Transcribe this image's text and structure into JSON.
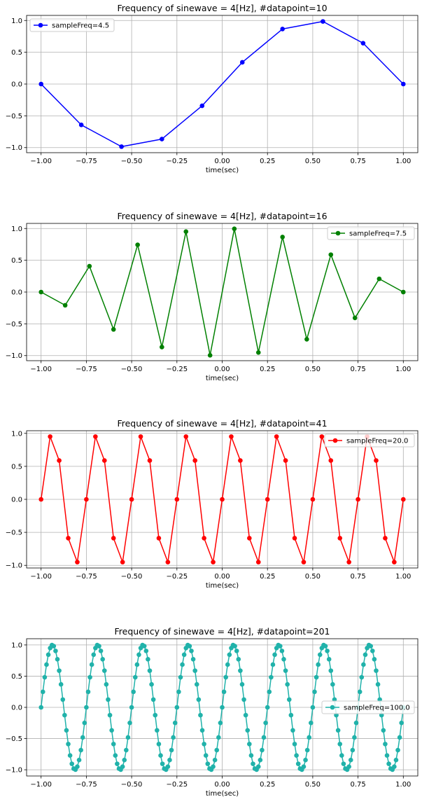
{
  "figure": {
    "background": "#ffffff"
  },
  "chart_data": [
    {
      "type": "line",
      "title": "Frequency of sinewave = 4[Hz], #datapoint=10",
      "xlabel": "time(sec)",
      "ylabel": "",
      "xlim": [
        -1.08,
        1.08
      ],
      "ylim": [
        -1.08,
        1.08
      ],
      "xticks": [
        -1.0,
        -0.75,
        -0.5,
        -0.25,
        0.0,
        0.25,
        0.5,
        0.75,
        1.0
      ],
      "xticklabels": [
        "−1.00",
        "−0.75",
        "−0.50",
        "−0.25",
        "0.00",
        "0.25",
        "0.50",
        "0.75",
        "1.00"
      ],
      "yticks": [
        -1.0,
        -0.5,
        0.0,
        0.5,
        1.0
      ],
      "yticklabels": [
        "−1.0",
        "−0.5",
        "0.0",
        "0.5",
        "1.0"
      ],
      "grid": true,
      "legend": "top-left",
      "series": [
        {
          "name": "sampleFreq=4.5",
          "color": "#0000ff",
          "marker": "circle",
          "x": [
            -1.0,
            -0.778,
            -0.556,
            -0.333,
            -0.111,
            0.111,
            0.333,
            0.556,
            0.778,
            1.0
          ],
          "y": [
            0.0,
            -0.643,
            -0.985,
            -0.866,
            -0.342,
            0.342,
            0.866,
            0.985,
            0.643,
            0.0
          ]
        }
      ]
    },
    {
      "type": "line",
      "title": "Frequency of sinewave = 4[Hz], #datapoint=16",
      "xlabel": "time(sec)",
      "ylabel": "",
      "xlim": [
        -1.08,
        1.08
      ],
      "ylim": [
        -1.08,
        1.08
      ],
      "xticks": [
        -1.0,
        -0.75,
        -0.5,
        -0.25,
        0.0,
        0.25,
        0.5,
        0.75,
        1.0
      ],
      "xticklabels": [
        "−1.00",
        "−0.75",
        "−0.50",
        "−0.25",
        "0.00",
        "0.25",
        "0.50",
        "0.75",
        "1.00"
      ],
      "yticks": [
        -1.0,
        -0.5,
        0.0,
        0.5,
        1.0
      ],
      "yticklabels": [
        "−1.0",
        "−0.5",
        "0.0",
        "0.5",
        "1.0"
      ],
      "grid": true,
      "legend": "top-right",
      "series": [
        {
          "name": "sampleFreq=7.5",
          "color": "#008000",
          "marker": "circle",
          "x": [
            -1.0,
            -0.867,
            -0.733,
            -0.6,
            -0.467,
            -0.333,
            -0.2,
            -0.067,
            0.067,
            0.2,
            0.333,
            0.467,
            0.6,
            0.733,
            0.867,
            1.0
          ],
          "y": [
            0.0,
            -0.208,
            0.407,
            -0.588,
            0.743,
            -0.866,
            0.951,
            -0.995,
            0.995,
            -0.951,
            0.866,
            -0.743,
            0.588,
            -0.407,
            0.208,
            0.0
          ]
        }
      ]
    },
    {
      "type": "line",
      "title": "Frequency of sinewave = 4[Hz], #datapoint=41",
      "xlabel": "time(sec)",
      "ylabel": "",
      "xlim": [
        -1.08,
        1.08
      ],
      "ylim": [
        -1.04,
        1.04
      ],
      "xticks": [
        -1.0,
        -0.75,
        -0.5,
        -0.25,
        0.0,
        0.25,
        0.5,
        0.75,
        1.0
      ],
      "xticklabels": [
        "−1.00",
        "−0.75",
        "−0.50",
        "−0.25",
        "0.00",
        "0.25",
        "0.50",
        "0.75",
        "1.00"
      ],
      "yticks": [
        -1.0,
        -0.5,
        0.0,
        0.5,
        1.0
      ],
      "yticklabels": [
        "−1.0",
        "−0.5",
        "0.0",
        "0.5",
        "1.0"
      ],
      "grid": true,
      "legend": "top-right",
      "series": [
        {
          "name": "sampleFreq=20.0",
          "color": "#ff0000",
          "marker": "circle",
          "x": [
            -1.0,
            -0.95,
            -0.9,
            -0.85,
            -0.8,
            -0.75,
            -0.7,
            -0.65,
            -0.6,
            -0.55,
            -0.5,
            -0.45,
            -0.4,
            -0.35,
            -0.3,
            -0.25,
            -0.2,
            -0.15,
            -0.1,
            -0.05,
            0.0,
            0.05,
            0.1,
            0.15,
            0.2,
            0.25,
            0.3,
            0.35,
            0.4,
            0.45,
            0.5,
            0.55,
            0.6,
            0.65,
            0.7,
            0.75,
            0.8,
            0.85,
            0.9,
            0.95,
            1.0
          ],
          "y": [
            0.0,
            0.951,
            0.588,
            -0.588,
            -0.951,
            0.0,
            0.951,
            0.588,
            -0.588,
            -0.951,
            0.0,
            0.951,
            0.588,
            -0.588,
            -0.951,
            0.0,
            0.951,
            0.588,
            -0.588,
            -0.951,
            0.0,
            0.951,
            0.588,
            -0.588,
            -0.951,
            0.0,
            0.951,
            0.588,
            -0.588,
            -0.951,
            0.0,
            0.951,
            0.588,
            -0.588,
            -0.951,
            0.0,
            0.951,
            0.588,
            -0.588,
            -0.951,
            0.0
          ]
        }
      ]
    },
    {
      "type": "line",
      "title": "Frequency of sinewave = 4[Hz], #datapoint=201",
      "xlabel": "time(sec)",
      "ylabel": "",
      "xlim": [
        -1.08,
        1.08
      ],
      "ylim": [
        -1.1,
        1.1
      ],
      "xticks": [
        -1.0,
        -0.75,
        -0.5,
        -0.25,
        0.0,
        0.25,
        0.5,
        0.75,
        1.0
      ],
      "xticklabels": [
        "−1.00",
        "−0.75",
        "−0.50",
        "−0.25",
        "0.00",
        "0.25",
        "0.50",
        "0.75",
        "1.00"
      ],
      "yticks": [
        -1.0,
        -0.5,
        0.0,
        0.5,
        1.0
      ],
      "yticklabels": [
        "−1.0",
        "−0.5",
        "0.0",
        "0.5",
        "1.0"
      ],
      "grid": true,
      "legend": "center-right",
      "series": [
        {
          "name": "sampleFreq=100.0",
          "color": "#20b2aa",
          "marker": "circle",
          "x": [
            -1.0,
            -0.99,
            -0.98,
            -0.97,
            -0.96,
            -0.95,
            -0.94,
            -0.93,
            -0.92,
            -0.91,
            -0.9,
            -0.89,
            -0.88,
            -0.87,
            -0.86,
            -0.85,
            -0.84,
            -0.83,
            -0.82,
            -0.81,
            -0.8,
            -0.79,
            -0.78,
            -0.77,
            -0.76,
            -0.75,
            -0.74,
            -0.73,
            -0.72,
            -0.71,
            -0.7,
            -0.69,
            -0.68,
            -0.67,
            -0.66,
            -0.65,
            -0.64,
            -0.63,
            -0.62,
            -0.61,
            -0.6,
            -0.59,
            -0.58,
            -0.57,
            -0.56,
            -0.55,
            -0.54,
            -0.53,
            -0.52,
            -0.51,
            -0.5,
            -0.49,
            -0.48,
            -0.47,
            -0.46,
            -0.45,
            -0.44,
            -0.43,
            -0.42,
            -0.41,
            -0.4,
            -0.39,
            -0.38,
            -0.37,
            -0.36,
            -0.35,
            -0.34,
            -0.33,
            -0.32,
            -0.31,
            -0.3,
            -0.29,
            -0.28,
            -0.27,
            -0.26,
            -0.25,
            -0.24,
            -0.23,
            -0.22,
            -0.21,
            -0.2,
            -0.19,
            -0.18,
            -0.17,
            -0.16,
            -0.15,
            -0.14,
            -0.13,
            -0.12,
            -0.11,
            -0.1,
            -0.09,
            -0.08,
            -0.07,
            -0.06,
            -0.05,
            -0.04,
            -0.03,
            -0.02,
            -0.01,
            0.0,
            0.01,
            0.02,
            0.03,
            0.04,
            0.05,
            0.06,
            0.07,
            0.08,
            0.09,
            0.1,
            0.11,
            0.12,
            0.13,
            0.14,
            0.15,
            0.16,
            0.17,
            0.18,
            0.19,
            0.2,
            0.21,
            0.22,
            0.23,
            0.24,
            0.25,
            0.26,
            0.27,
            0.28,
            0.29,
            0.3,
            0.31,
            0.32,
            0.33,
            0.34,
            0.35,
            0.36,
            0.37,
            0.38,
            0.39,
            0.4,
            0.41,
            0.42,
            0.43,
            0.44,
            0.45,
            0.46,
            0.47,
            0.48,
            0.49,
            0.5,
            0.51,
            0.52,
            0.53,
            0.54,
            0.55,
            0.56,
            0.57,
            0.58,
            0.59,
            0.6,
            0.61,
            0.62,
            0.63,
            0.64,
            0.65,
            0.66,
            0.67,
            0.68,
            0.69,
            0.7,
            0.71,
            0.72,
            0.73,
            0.74,
            0.75,
            0.76,
            0.77,
            0.78,
            0.79,
            0.8,
            0.81,
            0.82,
            0.83,
            0.84,
            0.85,
            0.86,
            0.87,
            0.88,
            0.89,
            0.9,
            0.91,
            0.92,
            0.93,
            0.94,
            0.95,
            0.96,
            0.97,
            0.98,
            0.99,
            1.0
          ],
          "y": [
            0.0,
            0.249,
            0.482,
            0.685,
            0.844,
            0.951,
            0.998,
            0.982,
            0.905,
            0.771,
            0.588,
            0.368,
            0.125,
            -0.125,
            -0.368,
            -0.588,
            -0.771,
            -0.905,
            -0.982,
            -0.998,
            -0.951,
            -0.844,
            -0.685,
            -0.482,
            -0.249,
            0.0,
            0.249,
            0.482,
            0.685,
            0.844,
            0.951,
            0.998,
            0.982,
            0.905,
            0.771,
            0.588,
            0.368,
            0.125,
            -0.125,
            -0.368,
            -0.588,
            -0.771,
            -0.905,
            -0.982,
            -0.998,
            -0.951,
            -0.844,
            -0.685,
            -0.482,
            -0.249,
            0.0,
            0.249,
            0.482,
            0.685,
            0.844,
            0.951,
            0.998,
            0.982,
            0.905,
            0.771,
            0.588,
            0.368,
            0.125,
            -0.125,
            -0.368,
            -0.588,
            -0.771,
            -0.905,
            -0.982,
            -0.998,
            -0.951,
            -0.844,
            -0.685,
            -0.482,
            -0.249,
            0.0,
            0.249,
            0.482,
            0.685,
            0.844,
            0.951,
            0.998,
            0.982,
            0.905,
            0.771,
            0.588,
            0.368,
            0.125,
            -0.125,
            -0.368,
            -0.588,
            -0.771,
            -0.905,
            -0.982,
            -0.998,
            -0.951,
            -0.844,
            -0.685,
            -0.482,
            -0.249,
            0.0,
            0.249,
            0.482,
            0.685,
            0.844,
            0.951,
            0.998,
            0.982,
            0.905,
            0.771,
            0.588,
            0.368,
            0.125,
            -0.125,
            -0.368,
            -0.588,
            -0.771,
            -0.905,
            -0.982,
            -0.998,
            -0.951,
            -0.844,
            -0.685,
            -0.482,
            -0.249,
            0.0,
            0.249,
            0.482,
            0.685,
            0.844,
            0.951,
            0.998,
            0.982,
            0.905,
            0.771,
            0.588,
            0.368,
            0.125,
            -0.125,
            -0.368,
            -0.588,
            -0.771,
            -0.905,
            -0.982,
            -0.998,
            -0.951,
            -0.844,
            -0.685,
            -0.482,
            -0.249,
            0.0,
            0.249,
            0.482,
            0.685,
            0.844,
            0.951,
            0.998,
            0.982,
            0.905,
            0.771,
            0.588,
            0.368,
            0.125,
            -0.125,
            -0.368,
            -0.588,
            -0.771,
            -0.905,
            -0.982,
            -0.998,
            -0.951,
            -0.844,
            -0.685,
            -0.482,
            -0.249,
            0.0,
            0.249,
            0.482,
            0.685,
            0.844,
            0.951,
            0.998,
            0.982,
            0.905,
            0.771,
            0.588,
            0.368,
            0.125,
            -0.125,
            -0.368,
            -0.588,
            -0.771,
            -0.905,
            -0.982,
            -0.998,
            -0.951,
            -0.844,
            -0.685,
            -0.482,
            -0.249,
            0.0
          ]
        }
      ]
    }
  ]
}
